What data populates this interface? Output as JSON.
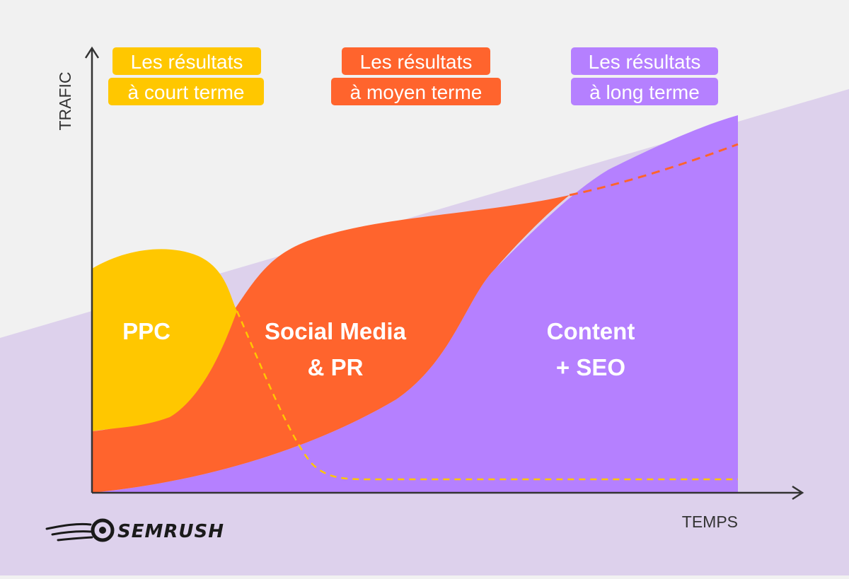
{
  "colors": {
    "background": "#f1f1f1",
    "background_wedge": "#ddd1ec",
    "ppc": "#ffc700",
    "social": "#ff642d",
    "content": "#b580ff",
    "axis": "#333333"
  },
  "axes": {
    "y_label": "TRAFIC",
    "x_label": "TEMPS"
  },
  "tags": [
    {
      "line1": "Les résultats",
      "line2": "à court terme",
      "color": "#ffc700"
    },
    {
      "line1": "Les résultats",
      "line2": "à moyen terme",
      "color": "#ff642d"
    },
    {
      "line1": "Les résultats",
      "line2": "à long terme",
      "color": "#b580ff"
    }
  ],
  "areas": {
    "ppc": {
      "line1": "PPC"
    },
    "social": {
      "line1": "Social Media",
      "line2": "& PR"
    },
    "content": {
      "line1": "Content",
      "line2": "+ SEO"
    }
  },
  "logo": {
    "text": "SEMRUSH",
    "icon": "semrush-fireball-icon"
  }
}
